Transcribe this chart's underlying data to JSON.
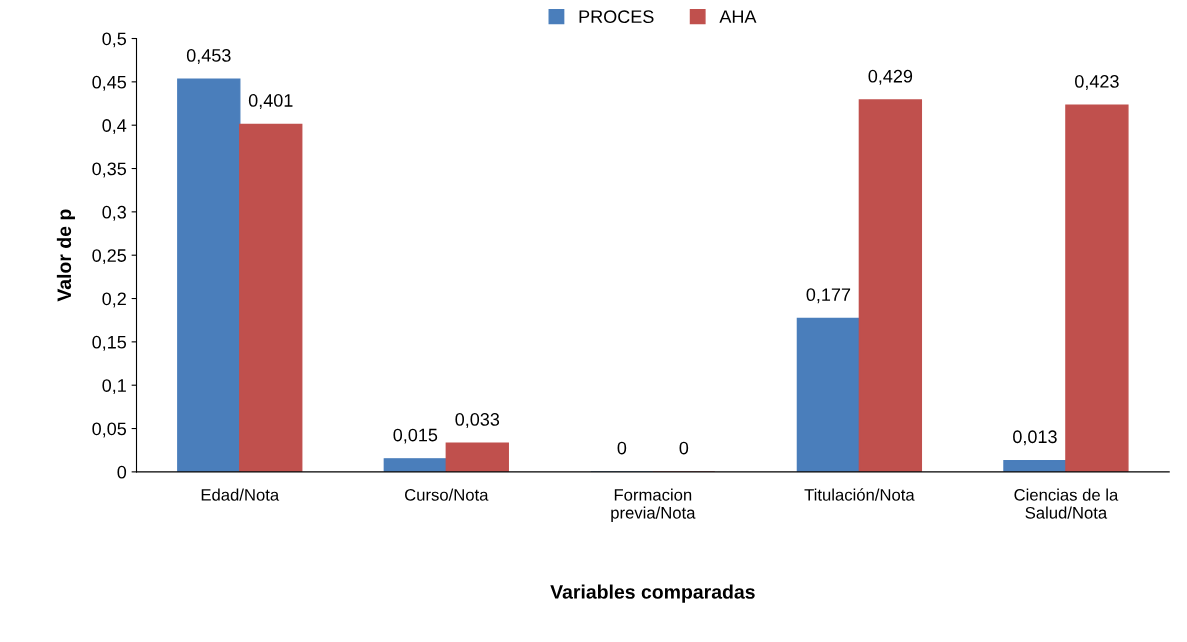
{
  "chart_data": {
    "type": "bar",
    "xlabel": "Variables comparadas",
    "ylabel": "Valor de p",
    "categories": [
      "Edad/Nota",
      "Curso/Nota",
      "Formacion\nprevia/Nota",
      "Titulación/Nota",
      "Ciencias de la\nSalud/Nota"
    ],
    "series": [
      {
        "name": "PROCES",
        "color": "#4a7ebb",
        "values": [
          0.453,
          0.015,
          0,
          0.177,
          0.013
        ],
        "value_labels": [
          "0,453",
          "0,015",
          "0",
          "0,177",
          "0,013"
        ]
      },
      {
        "name": "AHA",
        "color": "#c0504d",
        "values": [
          0.401,
          0.033,
          0,
          0.429,
          0.423
        ],
        "value_labels": [
          "0,401",
          "0,033",
          "0",
          "0,429",
          "0,423"
        ]
      }
    ],
    "ylim": [
      0,
      0.5
    ],
    "yticks": [
      0,
      {
        "value": 0.05,
        "label": "0,05"
      },
      {
        "value": 0.1,
        "label": "0,1"
      },
      {
        "value": 0.15,
        "label": "0,15"
      },
      {
        "value": 0.2,
        "label": "0,2"
      },
      {
        "value": 0.25,
        "label": "0,25"
      },
      {
        "value": 0.3,
        "label": "0,3"
      },
      {
        "value": 0.35,
        "label": "0,35"
      },
      {
        "value": 0.4,
        "label": "0,4"
      },
      {
        "value": 0.45,
        "label": "0,45"
      },
      {
        "value": 0.5,
        "label": "0,5"
      }
    ],
    "grid": false,
    "legend": "top"
  }
}
